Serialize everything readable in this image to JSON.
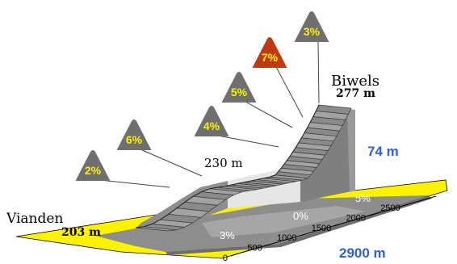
{
  "chart_data": {
    "type": "area",
    "title": "",
    "start": {
      "name": "Vianden",
      "elevation_label": "203 m"
    },
    "end": {
      "name": "Biwels",
      "elevation_label": "277 m"
    },
    "mid": {
      "elevation_label": "230 m"
    },
    "total_climb_label": "74 m",
    "total_distance_label": "2900 m",
    "distance_ticks": [
      "0",
      "500",
      "1000",
      "1500",
      "2000",
      "2500"
    ],
    "base_segments": [
      {
        "label": "3%",
        "from": 0,
        "to": 1300
      },
      {
        "label": "0%",
        "from": 1300,
        "to": 2100
      },
      {
        "label": "5%",
        "from": 2100,
        "to": 2900
      }
    ],
    "gradient_signs": [
      {
        "label": "2%",
        "highlight": false
      },
      {
        "label": "6%",
        "highlight": false
      },
      {
        "label": "4%",
        "highlight": false
      },
      {
        "label": "5%",
        "highlight": false
      },
      {
        "label": "7%",
        "highlight": true
      },
      {
        "label": "3%",
        "highlight": false
      }
    ],
    "colors": {
      "ground": "#fdf200",
      "sign": "#6f6f6f",
      "sign_highlight": "#c03a10",
      "sign_text": "#fff000",
      "accent_blue": "#2f5fdd",
      "road": "#8c8c8c"
    }
  }
}
